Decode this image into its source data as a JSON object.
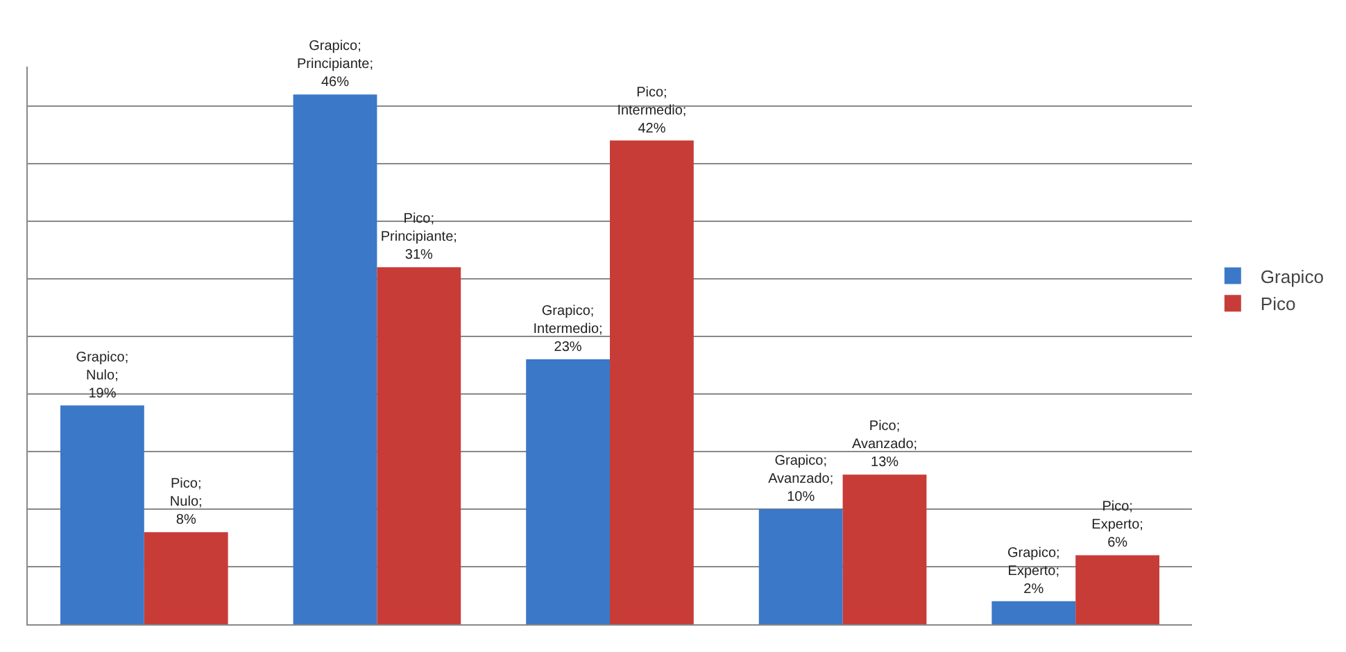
{
  "chart_data": {
    "type": "bar",
    "categories": [
      null,
      null,
      null,
      null,
      null
    ],
    "series": [
      {
        "name": "Grapico",
        "color": "#3b78c8",
        "values": [
          19,
          46,
          23,
          10,
          2
        ],
        "value_labels": [
          "Grapico; Nulo; 19%",
          "Grapico; Principiante; 46%",
          "Grapico; Intermedio; 23%",
          "Grapico; Avanzado; 10%",
          "Grapico; Experto; 2%"
        ]
      },
      {
        "name": "Pico",
        "color": "#c83c38",
        "values": [
          8,
          31,
          42,
          13,
          6
        ],
        "value_labels": [
          "Pico; Nulo; 8%",
          "Pico; Principiante; 31%",
          "Pico; Intermedio; 42%",
          "Pico; Avanzado; 13%",
          "Pico; Experto; 6%"
        ]
      }
    ],
    "grid": "y",
    "legend": "right",
    "tick_labels": false
  }
}
